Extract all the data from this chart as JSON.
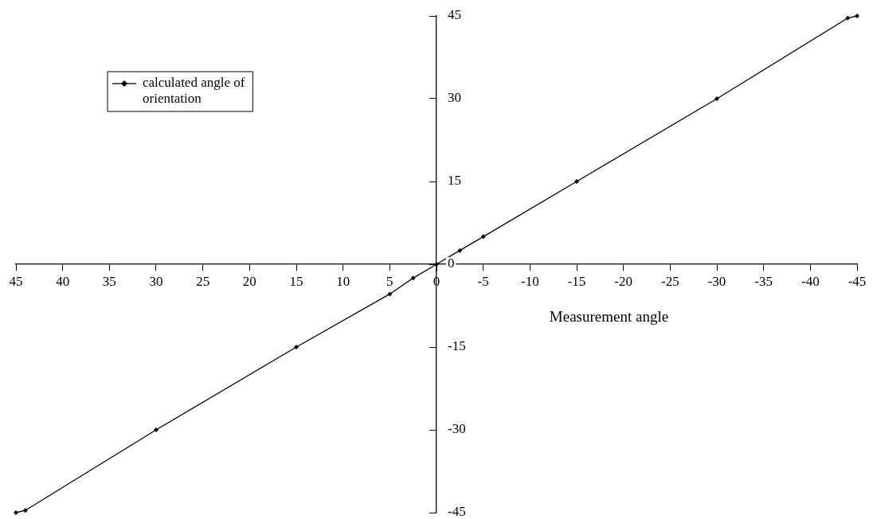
{
  "chart_data": {
    "type": "line",
    "xlabel": "Measurement angle",
    "xlim": [
      45,
      -45
    ],
    "xticks": [
      45,
      40,
      35,
      30,
      25,
      20,
      15,
      10,
      5,
      0,
      -5,
      -10,
      -15,
      -20,
      -25,
      -30,
      -35,
      -40,
      -45
    ],
    "ylim": [
      -45,
      45
    ],
    "yticks": [
      -45,
      -30,
      -15,
      0,
      15,
      30,
      45
    ],
    "series": [
      {
        "name": "calculated angle of orientation",
        "color": "#000000",
        "x": [
          45,
          44,
          30,
          15,
          5,
          2.5,
          0,
          -2.5,
          -5,
          -15,
          -30,
          -44,
          -45
        ],
        "values": [
          -45,
          -44.6,
          -30,
          -15,
          -5.4,
          -2.5,
          0,
          2.5,
          5,
          15,
          30,
          44.6,
          45
        ]
      }
    ],
    "marker": "diamond",
    "line_style": "solid",
    "grid": false,
    "legend": "top left"
  }
}
